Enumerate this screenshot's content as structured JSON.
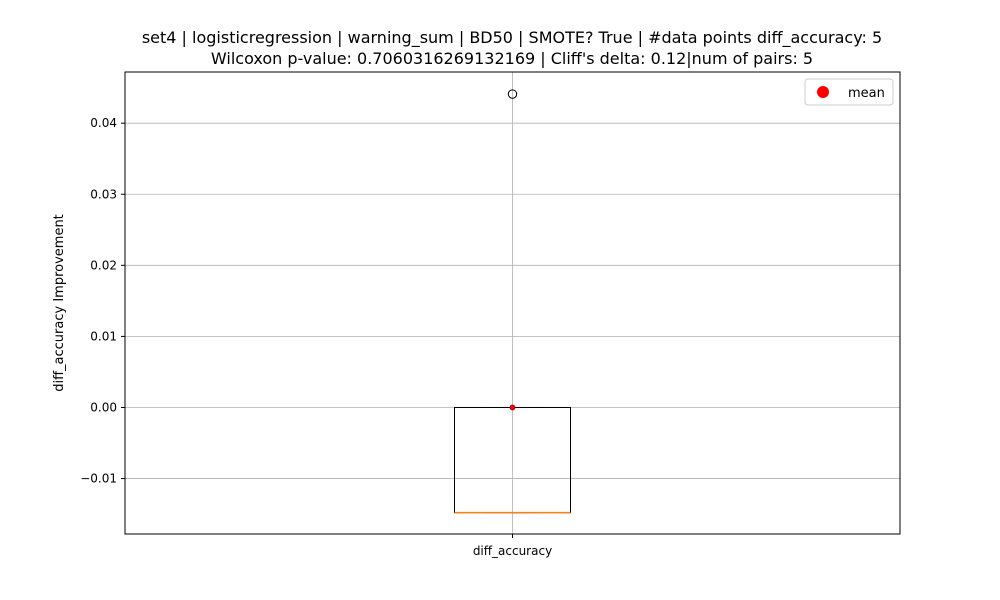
{
  "chart_data": {
    "type": "box",
    "title": "set4 | logisticregression | warning_sum | BD50 | SMOTE? True | #data points diff_accuracy: 5",
    "subtitle": "Wilcoxon p-value: 0.7060316269132169 | Cliff's delta: 0.12|num of pairs: 5",
    "xlabel": "",
    "ylabel": "diff_accuracy Improvement",
    "categories": [
      "diff_accuracy"
    ],
    "yticks": [
      -0.01,
      0.0,
      0.01,
      0.02,
      0.03,
      0.04
    ],
    "ytick_labels": [
      "−0.01",
      "0.00",
      "0.01",
      "0.02",
      "0.03",
      "0.04"
    ],
    "ylim": [
      -0.0178,
      0.0472
    ],
    "grid": true,
    "legend": {
      "placement": "top-right",
      "entries": [
        {
          "label": "mean",
          "color": "#ff0000",
          "marker": "circle"
        }
      ]
    },
    "box": {
      "q1": -0.0148,
      "median": -0.0148,
      "q3": 0.0,
      "whisker_low": -0.0148,
      "whisker_high": 0.0,
      "mean": 0.0,
      "outliers": [
        0.0441
      ]
    },
    "colors": {
      "median": "#ff7f0e",
      "mean": "#ff0000",
      "grid": "#b0b0b0",
      "box": "#000000"
    }
  }
}
